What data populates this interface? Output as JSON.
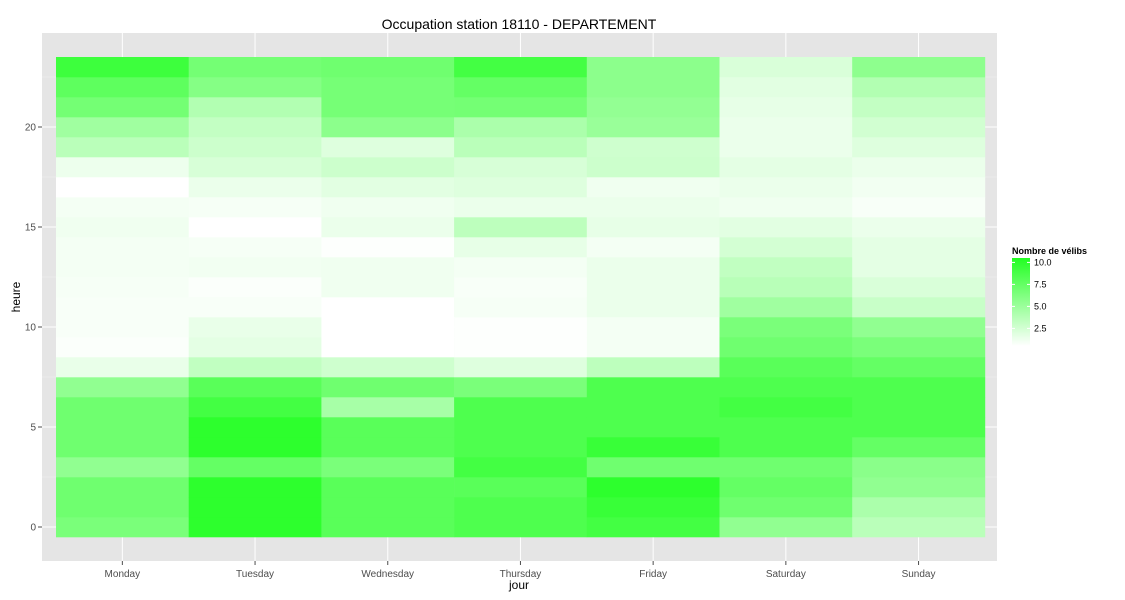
{
  "chart_data": {
    "type": "heatmap",
    "title": "Occupation station 18110 - DEPARTEMENT",
    "xlabel": "jour",
    "ylabel": "heure",
    "categories": [
      "Monday",
      "Tuesday",
      "Wednesday",
      "Thursday",
      "Friday",
      "Saturday",
      "Sunday"
    ],
    "hours": [
      0,
      1,
      2,
      3,
      4,
      5,
      6,
      7,
      8,
      9,
      10,
      11,
      12,
      13,
      14,
      15,
      16,
      17,
      18,
      19,
      20,
      21,
      22,
      23
    ],
    "ylim": [
      -0.5,
      23.5
    ],
    "y_ticks": [
      0,
      5,
      10,
      15,
      20
    ],
    "grid": true,
    "legend": {
      "title": "Nombre de vélibs",
      "position": "right",
      "ticks": [
        "10.0",
        "7.5",
        "5.0",
        "2.5"
      ],
      "tick_values": [
        10,
        7.5,
        5,
        2.5
      ],
      "min": 0.5,
      "max": 10.5,
      "low_color": "#ffffff",
      "high_color": "#22ff22"
    },
    "values": {
      "Monday": [
        6.5,
        7.0,
        7.0,
        5.5,
        7.0,
        7.0,
        7.0,
        5.5,
        1.5,
        0.7,
        0.8,
        0.8,
        0.9,
        1.0,
        1.0,
        1.2,
        1.0,
        0.4,
        1.3,
        3.6,
        4.8,
        6.8,
        7.8,
        9.3
      ],
      "Tuesday": [
        10.0,
        10.0,
        10.0,
        7.5,
        10.0,
        10.0,
        9.0,
        8.0,
        3.3,
        1.7,
        1.5,
        0.8,
        0.7,
        1.1,
        0.9,
        0.5,
        0.9,
        1.4,
        2.3,
        2.8,
        3.2,
        4.0,
        6.0,
        6.8
      ],
      "Wednesday": [
        8.0,
        8.0,
        8.0,
        6.5,
        8.0,
        8.0,
        4.5,
        7.0,
        2.7,
        0.3,
        0.3,
        0.3,
        1.2,
        1.2,
        0.6,
        1.4,
        1.2,
        1.8,
        2.8,
        2.0,
        5.7,
        6.7,
        6.7,
        7.0
      ],
      "Thursday": [
        8.5,
        8.5,
        8.0,
        9.0,
        8.5,
        8.5,
        8.5,
        6.5,
        2.0,
        0.6,
        0.6,
        0.9,
        0.8,
        1.0,
        1.6,
        3.5,
        1.4,
        2.0,
        2.3,
        3.6,
        4.3,
        6.8,
        7.5,
        9.0
      ],
      "Friday": [
        9.0,
        9.5,
        10.0,
        7.0,
        9.5,
        8.5,
        8.5,
        8.5,
        3.5,
        1.0,
        1.0,
        1.4,
        1.4,
        1.4,
        1.0,
        1.6,
        1.4,
        1.2,
        2.8,
        2.7,
        5.1,
        5.4,
        5.7,
        5.7
      ],
      "Saturday": [
        5.5,
        7.0,
        7.5,
        7.0,
        8.5,
        8.5,
        9.0,
        8.5,
        8.0,
        7.0,
        6.5,
        4.8,
        3.7,
        3.3,
        2.5,
        1.8,
        1.2,
        1.4,
        1.7,
        1.4,
        1.4,
        1.6,
        1.8,
        2.2
      ],
      "Sunday": [
        3.6,
        4.3,
        5.5,
        5.8,
        7.5,
        8.5,
        8.5,
        8.5,
        7.5,
        6.5,
        5.5,
        3.0,
        2.2,
        1.7,
        1.7,
        1.4,
        0.8,
        1.1,
        1.4,
        2.0,
        2.6,
        3.2,
        4.0,
        5.6
      ]
    }
  }
}
